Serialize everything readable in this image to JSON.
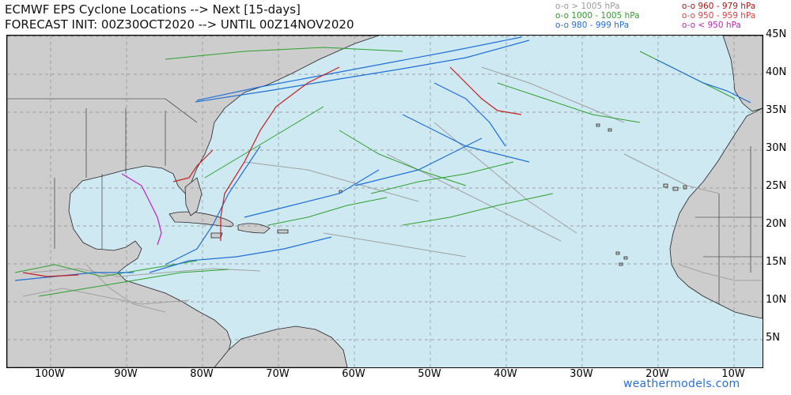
{
  "header": {
    "title_line1": "ECMWF EPS Cyclone Locations --> Next [15-days]",
    "title_line2": "FORECAST INIT: 00Z30OCT2020 --> UNTIL 00Z14NOV2020"
  },
  "legend": [
    {
      "label": "o-o > 1005 hPa",
      "color": "#9a9a9a"
    },
    {
      "label": "o-o 1000 - 1005 hPa",
      "color": "#2ca02c"
    },
    {
      "label": "o-o 980 - 999 hPa",
      "color": "#1f6fd6"
    },
    {
      "label": "o-o 960 - 979 hPa",
      "color": "#b01515"
    },
    {
      "label": "o-o 950 - 959 hPa",
      "color": "#e04040"
    },
    {
      "label": "o-o < 950 hPa",
      "color": "#c020c0"
    }
  ],
  "axes": {
    "lat_labels": [
      "45N",
      "40N",
      "35N",
      "30N",
      "25N",
      "20N",
      "15N",
      "10N",
      "5N"
    ],
    "lon_labels": [
      "100W",
      "90W",
      "80W",
      "70W",
      "60W",
      "50W",
      "40W",
      "30W",
      "20W",
      "10W"
    ]
  },
  "credit": "weathermodels.com",
  "colors": {
    "ocean": "#cfe9f2",
    "land": "#cdcdcd",
    "grid": "#8a8a8a"
  }
}
